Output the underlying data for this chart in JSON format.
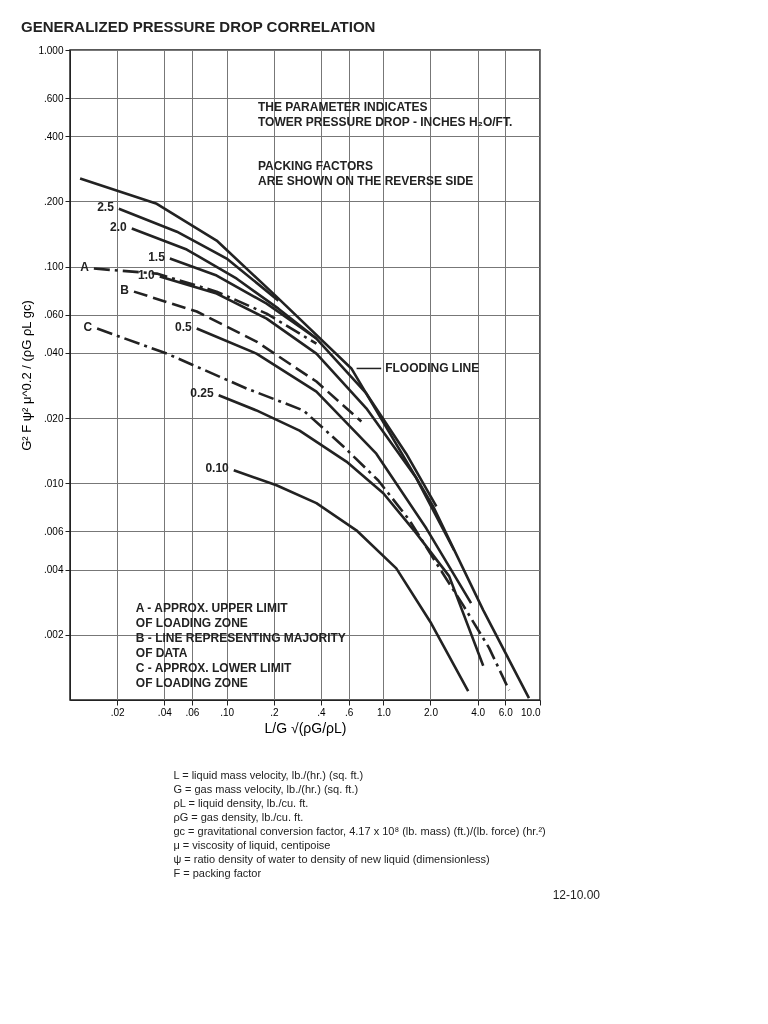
{
  "chart_data": {
    "type": "line",
    "title": "GENERALIZED PRESSURE DROP CORRELATION",
    "xlabel": "L/G √(ρG/ρL)",
    "ylabel": "G² F ψ² μ^0.2 / (ρG ρL gc)",
    "log": "xy",
    "grid": true,
    "legend": false,
    "marker": "none",
    "xlim": [
      0.01,
      10
    ],
    "ylim": [
      0.001,
      1
    ],
    "xticks": [
      {
        "value": 0.02,
        "label": ".02"
      },
      {
        "value": 0.04,
        "label": ".04"
      },
      {
        "value": 0.06,
        "label": ".06"
      },
      {
        "value": 0.1,
        "label": ".10"
      },
      {
        "value": 0.2,
        "label": ".2"
      },
      {
        "value": 0.4,
        "label": ".4"
      },
      {
        "value": 0.6,
        "label": ".6"
      },
      {
        "value": 1,
        "label": "1.0"
      },
      {
        "value": 2,
        "label": "2.0"
      },
      {
        "value": 4,
        "label": "4.0"
      },
      {
        "value": 6,
        "label": "6.0"
      },
      {
        "value": 10,
        "label": "10.0"
      }
    ],
    "yticks": [
      {
        "value": 0.002,
        "label": ".002"
      },
      {
        "value": 0.004,
        "label": ".004"
      },
      {
        "value": 0.006,
        "label": ".006"
      },
      {
        "value": 0.01,
        "label": ".010"
      },
      {
        "value": 0.02,
        "label": ".020"
      },
      {
        "value": 0.04,
        "label": ".040"
      },
      {
        "value": 0.06,
        "label": ".060"
      },
      {
        "value": 0.1,
        "label": ".100"
      },
      {
        "value": 0.2,
        "label": ".200"
      },
      {
        "value": 0.4,
        "label": ".400"
      },
      {
        "value": 0.6,
        "label": ".600"
      },
      {
        "value": 1,
        "label": "1.000"
      }
    ],
    "series": [
      {
        "color": "#222222",
        "line_style": "solid",
        "x": [
          0.0116,
          0.0358,
          0.0863,
          0.208,
          0.625,
          2.08,
          4.34,
          8.5
        ],
        "values": [
          0.255,
          0.195,
          0.132,
          0.0727,
          0.0339,
          0.00783,
          0.0026,
          0.00102
        ]
      },
      {
        "name": "2.5",
        "color": "#222222",
        "line_style": "solid",
        "x": [
          0.0205,
          0.0481,
          0.1,
          0.214
        ],
        "values": [
          0.185,
          0.145,
          0.109,
          0.0697
        ]
      },
      {
        "name": "2.0",
        "color": "#222222",
        "line_style": "solid",
        "x": [
          0.0248,
          0.0556,
          0.116,
          0.214,
          0.374
        ],
        "values": [
          0.15,
          0.12,
          0.088,
          0.064,
          0.0466
        ]
      },
      {
        "name": "1.5",
        "color": "#222222",
        "line_style": "solid",
        "x": [
          0.0434,
          0.0863,
          0.18,
          0.374,
          0.779,
          1.4,
          2.18
        ],
        "values": [
          0.109,
          0.091,
          0.0675,
          0.0466,
          0.026,
          0.0137,
          0.00783
        ]
      },
      {
        "name": "A",
        "color": "#222222",
        "line_style": "dashdot",
        "x": [
          0.0142,
          0.0358,
          0.0863,
          0.18,
          0.374
        ],
        "values": [
          0.098,
          0.0929,
          0.0767,
          0.0607,
          0.0441
        ]
      },
      {
        "name": "1.0",
        "color": "#222222",
        "line_style": "solid",
        "x": [
          0.0374,
          0.0863,
          0.18,
          0.374,
          0.779,
          1.62,
          2.83
        ],
        "values": [
          0.09,
          0.0751,
          0.0576,
          0.0397,
          0.0222,
          0.0106,
          0.00491
        ]
      },
      {
        "name": "B",
        "color": "#222222",
        "line_style": "dashed",
        "x": [
          0.0256,
          0.0644,
          0.155,
          0.374,
          0.724
        ],
        "values": [
          0.0767,
          0.0621,
          0.0451,
          0.0295,
          0.0193
        ]
      },
      {
        "name": "0.5",
        "color": "#222222",
        "line_style": "solid",
        "x": [
          0.0644,
          0.155,
          0.374,
          0.902,
          1.88,
          3.63
        ],
        "values": [
          0.0518,
          0.0397,
          0.0265,
          0.0137,
          0.0062,
          0.0028
        ]
      },
      {
        "name": "C",
        "color": "#222222",
        "line_style": "dashdot",
        "x": [
          0.0149,
          0.0415,
          0.134,
          0.309,
          0.556,
          0.929,
          1.47,
          2.18,
          3.23,
          4.73,
          6.35
        ],
        "values": [
          0.0518,
          0.0397,
          0.0274,
          0.0217,
          0.0148,
          0.0103,
          0.00675,
          0.00428,
          0.00274,
          0.00174,
          0.00111
        ]
      },
      {
        "name": "0.25",
        "color": "#222222",
        "line_style": "solid",
        "x": [
          0.0889,
          0.155,
          0.292,
          0.581,
          1.0,
          1.62,
          2.63,
          4.34
        ],
        "values": [
          0.0255,
          0.0217,
          0.0175,
          0.0126,
          0.009,
          0.00589,
          0.00373,
          0.00144
        ]
      },
      {
        "name": "0.10",
        "color": "#222222",
        "line_style": "solid",
        "x": [
          0.111,
          0.208,
          0.374,
          0.673,
          1.21,
          2.02,
          3.48
        ],
        "values": [
          0.0115,
          0.0098,
          0.0081,
          0.00607,
          0.00405,
          0.00226,
          0.0011
        ]
      }
    ],
    "annotations": [
      {
        "text": "FLOODING LINE",
        "x": 0.625,
        "y": 0.0339
      },
      "THE PARAMETER INDICATES\nTOWER PRESSURE DROP - INCHES H₂O/FT.",
      "PACKING FACTORS\nARE SHOWN ON THE REVERSE SIDE",
      "A - APPROX. UPPER LIMIT\n      OF LOADING ZONE\nB - LINE REPRESENTING MAJORITY\n      OF DATA\nC - APPROX. LOWER LIMIT\n      OF LOADING ZONE",
      "L = liquid mass velocity, lb./(hr.) (sq. ft.)\nG = gas mass velocity, lb./(hr.) (sq. ft.)\nρL = liquid density, lb./cu. ft.\nρG = gas density, lb./cu. ft.\ngc = gravitational conversion factor, 4.17 x 10⁸ (lb. mass) (ft.)/(lb. force) (hr.²)\nμ = viscosity of liquid, centipoise\nψ = ratio density of water to density of new liquid (dimensionless)\nF = packing factor",
      "12-10.00"
    ]
  }
}
